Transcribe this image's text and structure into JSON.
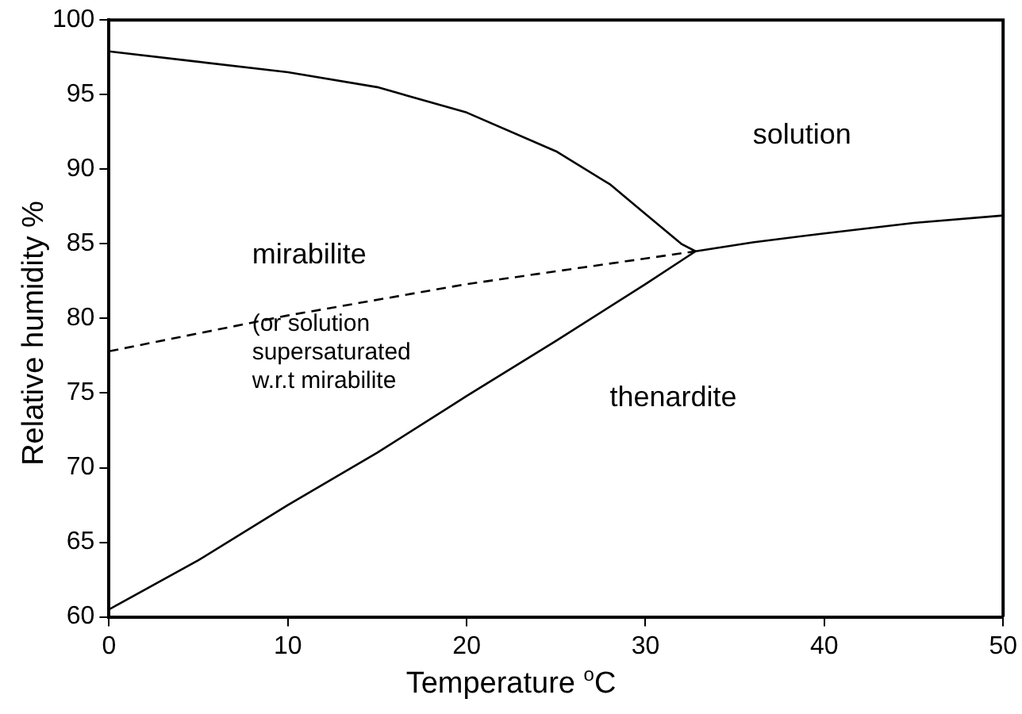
{
  "chart_data": {
    "type": "line",
    "xlabel": "Temperature $^{o}$C",
    "ylabel": "Relative humidity %",
    "xlim": [
      0,
      50
    ],
    "ylim": [
      60,
      100
    ],
    "xticks": [
      0,
      10,
      20,
      30,
      40,
      50
    ],
    "yticks": [
      60,
      65,
      70,
      75,
      80,
      85,
      90,
      95,
      100
    ],
    "grid": false,
    "legend": false,
    "marker": "none",
    "series": [
      {
        "color": "#000000",
        "x": [
          0,
          5,
          10,
          15,
          20,
          25,
          28,
          30,
          32,
          32.8
        ],
        "values": [
          97.9,
          97.2,
          96.5,
          95.5,
          93.8,
          91.2,
          89,
          87,
          85,
          84.5
        ]
      },
      {
        "color": "#000000",
        "x": [
          0,
          5,
          10,
          15,
          20,
          25,
          30,
          32.8,
          36,
          40,
          45,
          50
        ],
        "values": [
          60.5,
          63.8,
          67.5,
          71,
          74.8,
          78.5,
          82.3,
          84.5,
          85.1,
          85.7,
          86.4,
          86.9
        ]
      },
      {
        "color": "#000000",
        "line_style": "dashed",
        "x": [
          0,
          10,
          20,
          32.8
        ],
        "values": [
          77.8,
          80.2,
          82.3,
          84.5
        ]
      }
    ],
    "annotations": [
      "solution",
      "mirabilite",
      "(or solution\nsupersaturated\nw.r.t mirabilite",
      "thenardite"
    ]
  }
}
